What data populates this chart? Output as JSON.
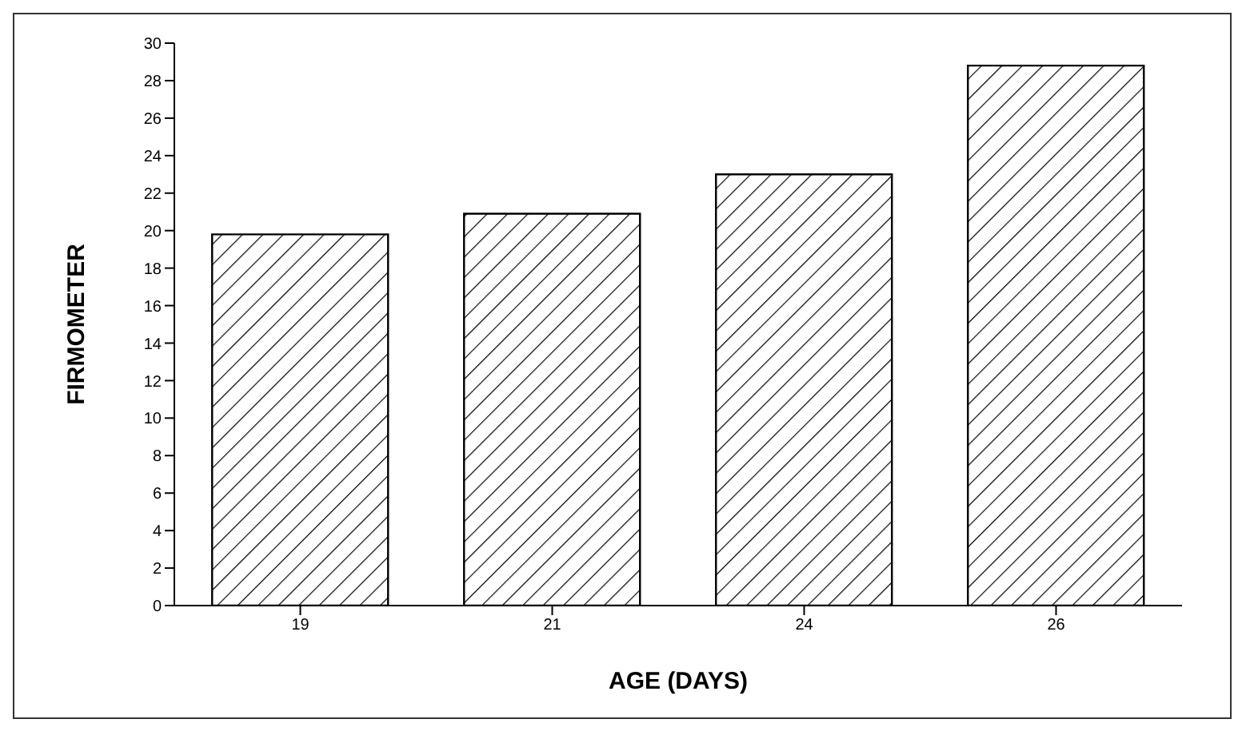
{
  "chart_data": {
    "type": "bar",
    "xlabel": "AGE (DAYS)",
    "ylabel": "FIRMOMETER",
    "categories": [
      "19",
      "21",
      "24",
      "26"
    ],
    "values": [
      19.8,
      20.9,
      23,
      28.8
    ],
    "color": "#000000",
    "ylim": [
      0,
      30
    ],
    "yticks": [
      0,
      2,
      4,
      6,
      8,
      10,
      12,
      14,
      16,
      18,
      20,
      22,
      24,
      26,
      28,
      30
    ],
    "grid": false,
    "legend": false
  }
}
